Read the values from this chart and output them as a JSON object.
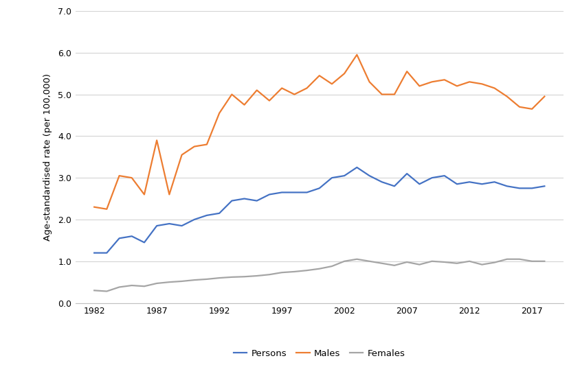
{
  "years": [
    1982,
    1983,
    1984,
    1985,
    1986,
    1987,
    1988,
    1989,
    1990,
    1991,
    1992,
    1993,
    1994,
    1995,
    1996,
    1997,
    1998,
    1999,
    2000,
    2001,
    2002,
    2003,
    2004,
    2005,
    2006,
    2007,
    2008,
    2009,
    2010,
    2011,
    2012,
    2013,
    2014,
    2015,
    2016,
    2017,
    2018
  ],
  "persons": [
    1.2,
    1.2,
    1.55,
    1.6,
    1.45,
    1.85,
    1.9,
    1.85,
    2.0,
    2.1,
    2.15,
    2.45,
    2.5,
    2.45,
    2.6,
    2.65,
    2.65,
    2.65,
    2.75,
    3.0,
    3.05,
    3.25,
    3.05,
    2.9,
    2.8,
    3.1,
    2.85,
    3.0,
    3.05,
    2.85,
    2.9,
    2.85,
    2.9,
    2.8,
    2.75,
    2.75,
    2.8
  ],
  "males": [
    2.3,
    2.25,
    3.05,
    3.0,
    2.6,
    3.9,
    2.6,
    3.55,
    3.75,
    3.8,
    4.55,
    5.0,
    4.75,
    5.1,
    4.85,
    5.15,
    5.0,
    5.15,
    5.45,
    5.25,
    5.5,
    5.95,
    5.3,
    5.0,
    5.0,
    5.55,
    5.2,
    5.3,
    5.35,
    5.2,
    5.3,
    5.25,
    5.15,
    4.95,
    4.7,
    4.65,
    4.95
  ],
  "females": [
    0.3,
    0.28,
    0.38,
    0.42,
    0.4,
    0.47,
    0.5,
    0.52,
    0.55,
    0.57,
    0.6,
    0.62,
    0.63,
    0.65,
    0.68,
    0.73,
    0.75,
    0.78,
    0.82,
    0.88,
    1.0,
    1.05,
    1.0,
    0.95,
    0.9,
    0.98,
    0.92,
    1.0,
    0.98,
    0.95,
    1.0,
    0.92,
    0.97,
    1.05,
    1.05,
    1.0,
    1.0
  ],
  "persons_color": "#4472C4",
  "males_color": "#ED7D31",
  "females_color": "#A5A5A5",
  "ylabel": "Age-standardised rate (per 100,000)",
  "ylim": [
    0.0,
    7.0
  ],
  "yticks": [
    0.0,
    1.0,
    2.0,
    3.0,
    4.0,
    5.0,
    6.0,
    7.0
  ],
  "xticks": [
    1982,
    1987,
    1992,
    1997,
    2002,
    2007,
    2012,
    2017
  ],
  "legend_labels": [
    "Persons",
    "Males",
    "Females"
  ],
  "background_color": "#ffffff",
  "grid_color": "#d3d3d3",
  "line_width": 1.6
}
